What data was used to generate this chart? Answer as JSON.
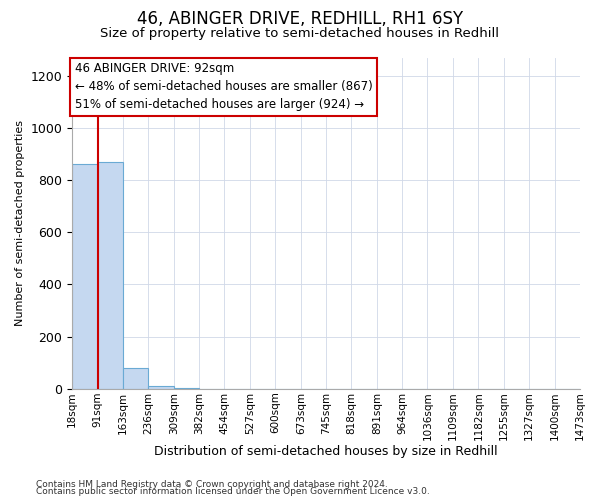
{
  "title1": "46, ABINGER DRIVE, REDHILL, RH1 6SY",
  "title2": "Size of property relative to semi-detached houses in Redhill",
  "xlabel": "Distribution of semi-detached houses by size in Redhill",
  "ylabel": "Number of semi-detached properties",
  "property_size": 92,
  "bin_edges": [
    18,
    91,
    163,
    236,
    309,
    382,
    454,
    527,
    600,
    673,
    745,
    818,
    891,
    964,
    1036,
    1109,
    1182,
    1255,
    1327,
    1400,
    1473
  ],
  "bar_heights": [
    860,
    870,
    80,
    10,
    2,
    1,
    1,
    1,
    0,
    0,
    0,
    0,
    0,
    0,
    0,
    0,
    0,
    0,
    0,
    0
  ],
  "bar_color": "#c5d8f0",
  "bar_edge_color": "#6aaad4",
  "redline_color": "#cc0000",
  "annotation_title": "46 ABINGER DRIVE: 92sqm",
  "annotation_line1": "← 48% of semi-detached houses are smaller (867)",
  "annotation_line2": "51% of semi-detached houses are larger (924) →",
  "annotation_box_color": "#ffffff",
  "annotation_box_edge": "#cc0000",
  "ylim": [
    0,
    1270
  ],
  "yticks": [
    0,
    200,
    400,
    600,
    800,
    1000,
    1200
  ],
  "footnote1": "Contains HM Land Registry data © Crown copyright and database right 2024.",
  "footnote2": "Contains public sector information licensed under the Open Government Licence v3.0.",
  "bg_color": "#ffffff",
  "title1_fontsize": 12,
  "title2_fontsize": 9.5,
  "ylabel_fontsize": 8,
  "xlabel_fontsize": 9,
  "ytick_fontsize": 9,
  "xtick_fontsize": 7.5,
  "annot_fontsize": 8.5,
  "footnote_fontsize": 6.5
}
